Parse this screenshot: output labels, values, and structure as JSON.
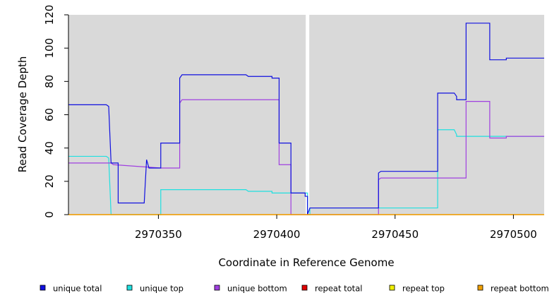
{
  "chart_data": {
    "type": "line",
    "title": "",
    "xlabel": "Coordinate in Reference Genome",
    "ylabel": "Read Coverage Depth",
    "xlim": [
      2970312,
      2970513
    ],
    "ylim": [
      0,
      120
    ],
    "x_ticks": [
      2970350,
      2970400,
      2970450,
      2970500
    ],
    "y_ticks": [
      0,
      20,
      40,
      60,
      80,
      100,
      120
    ],
    "grid": false,
    "background": "#d9d9d9",
    "gap": {
      "x": 2970413,
      "color": "#ffffff"
    },
    "legend_position": "bottom",
    "series": [
      {
        "name": "unique total",
        "color": "#1010e0",
        "points": [
          [
            2970312,
            66
          ],
          [
            2970328,
            66
          ],
          [
            2970329,
            65
          ],
          [
            2970330,
            31
          ],
          [
            2970333,
            31
          ],
          [
            2970333,
            7
          ],
          [
            2970344,
            7
          ],
          [
            2970345,
            33
          ],
          [
            2970346,
            28
          ],
          [
            2970351,
            28
          ],
          [
            2970351,
            43
          ],
          [
            2970359,
            43
          ],
          [
            2970359,
            82
          ],
          [
            2970360,
            84
          ],
          [
            2970387,
            84
          ],
          [
            2970388,
            83
          ],
          [
            2970398,
            83
          ],
          [
            2970398,
            82
          ],
          [
            2970401,
            82
          ],
          [
            2970401,
            43
          ],
          [
            2970406,
            43
          ],
          [
            2970406,
            13
          ],
          [
            2970412,
            13
          ],
          [
            2970412,
            11
          ],
          [
            2970413,
            11
          ],
          [
            2970413,
            0
          ],
          [
            2970413,
            0
          ],
          [
            2970414,
            4
          ],
          [
            2970443,
            4
          ],
          [
            2970443,
            25
          ],
          [
            2970444,
            26
          ],
          [
            2970468,
            26
          ],
          [
            2970468,
            73
          ],
          [
            2970475,
            73
          ],
          [
            2970476,
            71
          ],
          [
            2970476,
            69
          ],
          [
            2970480,
            69
          ],
          [
            2970480,
            115
          ],
          [
            2970490,
            115
          ],
          [
            2970490,
            93
          ],
          [
            2970497,
            93
          ],
          [
            2970497,
            94
          ],
          [
            2970513,
            94
          ]
        ]
      },
      {
        "name": "unique top",
        "color": "#20e0e0",
        "points": [
          [
            2970312,
            35
          ],
          [
            2970328,
            35
          ],
          [
            2970329,
            34
          ],
          [
            2970330,
            0
          ],
          [
            2970351,
            0
          ],
          [
            2970351,
            15
          ],
          [
            2970387,
            15
          ],
          [
            2970388,
            14
          ],
          [
            2970398,
            14
          ],
          [
            2970398,
            13
          ],
          [
            2970413,
            13
          ],
          [
            2970413,
            0
          ],
          [
            2970414,
            0
          ],
          [
            2970414,
            4
          ],
          [
            2970468,
            4
          ],
          [
            2970468,
            51
          ],
          [
            2970475,
            51
          ],
          [
            2970476,
            48
          ],
          [
            2970476,
            47
          ],
          [
            2970497,
            47
          ],
          [
            2970513,
            47
          ]
        ]
      },
      {
        "name": "unique bottom",
        "color": "#a040e0",
        "points": [
          [
            2970312,
            31
          ],
          [
            2970330,
            31
          ],
          [
            2970331,
            30
          ],
          [
            2970351,
            28
          ],
          [
            2970359,
            28
          ],
          [
            2970359,
            67
          ],
          [
            2970360,
            69
          ],
          [
            2970401,
            69
          ],
          [
            2970401,
            30
          ],
          [
            2970406,
            30
          ],
          [
            2970406,
            0
          ],
          [
            2970443,
            0
          ],
          [
            2970443,
            21
          ],
          [
            2970444,
            22
          ],
          [
            2970480,
            22
          ],
          [
            2970480,
            68
          ],
          [
            2970490,
            68
          ],
          [
            2970490,
            46
          ],
          [
            2970497,
            46
          ],
          [
            2970497,
            47
          ],
          [
            2970513,
            47
          ]
        ]
      },
      {
        "name": "repeat total",
        "color": "#e00000",
        "points": [
          [
            2970312,
            0
          ],
          [
            2970513,
            0
          ]
        ]
      },
      {
        "name": "repeat top",
        "color": "#f0f000",
        "points": [
          [
            2970312,
            0
          ],
          [
            2970513,
            0
          ]
        ]
      },
      {
        "name": "repeat bottom",
        "color": "#f0a000",
        "points": [
          [
            2970312,
            0
          ],
          [
            2970513,
            0
          ]
        ]
      }
    ]
  }
}
